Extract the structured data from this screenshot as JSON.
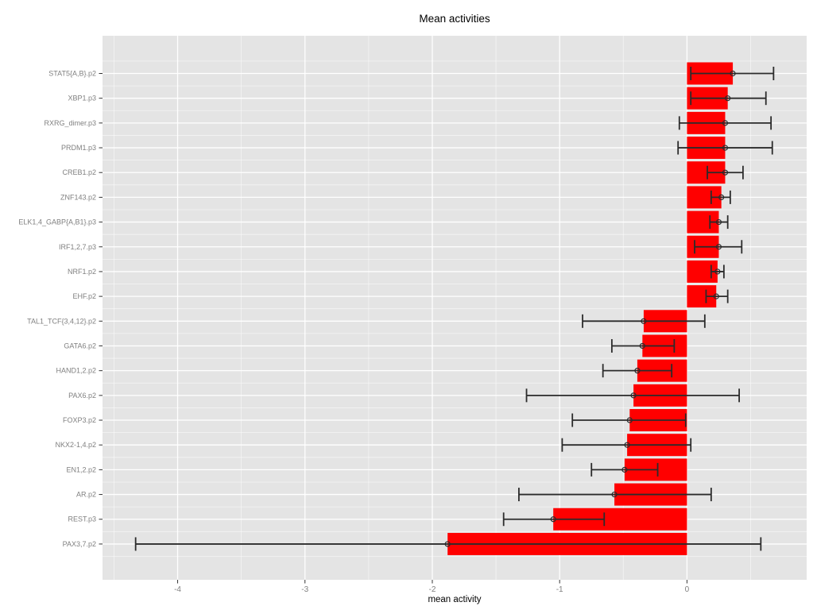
{
  "chart_data": {
    "type": "bar",
    "orientation": "horizontal",
    "title": "Mean activities",
    "xlabel": "mean activity",
    "ylabel": "",
    "legend_position": "none",
    "grid": "white major and minor gridlines on gray panel",
    "xlim": [
      -4.59,
      0.94
    ],
    "x_ticks": [
      -4,
      -3,
      -2,
      -1,
      0
    ],
    "x_tick_labels": [
      "-4",
      "-3",
      "-2",
      "-1",
      "0"
    ],
    "categories": [
      "STAT5{A,B}.p2",
      "XBP1.p3",
      "RXRG_dimer.p3",
      "PRDM1.p3",
      "CREB1.p2",
      "ZNF143.p2",
      "ELK1,4_GABP{A,B1}.p3",
      "IRF1,2,7.p3",
      "NRF1.p2",
      "EHF.p2",
      "TAL1_TCF{3,4,12}.p2",
      "GATA6.p2",
      "HAND1,2.p2",
      "PAX6.p2",
      "FOXP3.p2",
      "NKX2-1,4.p2",
      "EN1,2.p2",
      "AR.p2",
      "REST.p3",
      "PAX3,7.p2"
    ],
    "series": [
      {
        "name": "mean activity",
        "values": [
          0.36,
          0.32,
          0.3,
          0.3,
          0.3,
          0.27,
          0.25,
          0.25,
          0.24,
          0.23,
          -0.34,
          -0.35,
          -0.39,
          -0.42,
          -0.45,
          -0.47,
          -0.49,
          -0.57,
          -1.05,
          -1.88
        ],
        "ci_low": [
          0.03,
          0.03,
          -0.06,
          -0.07,
          0.16,
          0.19,
          0.18,
          0.06,
          0.19,
          0.15,
          -0.82,
          -0.59,
          -0.66,
          -1.26,
          -0.9,
          -0.98,
          -0.75,
          -1.32,
          -1.44,
          -4.33
        ],
        "ci_high": [
          0.68,
          0.62,
          0.66,
          0.67,
          0.44,
          0.34,
          0.32,
          0.43,
          0.29,
          0.32,
          0.14,
          -0.1,
          -0.12,
          0.41,
          -0.01,
          0.03,
          -0.23,
          0.19,
          -0.65,
          0.58
        ]
      }
    ],
    "colors": {
      "bar_fill": "#FF0000",
      "errorbar": "#2B2B2B",
      "panel_background": "#E4E4E4",
      "grid_major": "#FFFFFF",
      "grid_minor": "rgba(255,255,255,0.6)",
      "axis_text": "#808080",
      "tick_mark": "#333333",
      "title_text": "#000000"
    }
  }
}
